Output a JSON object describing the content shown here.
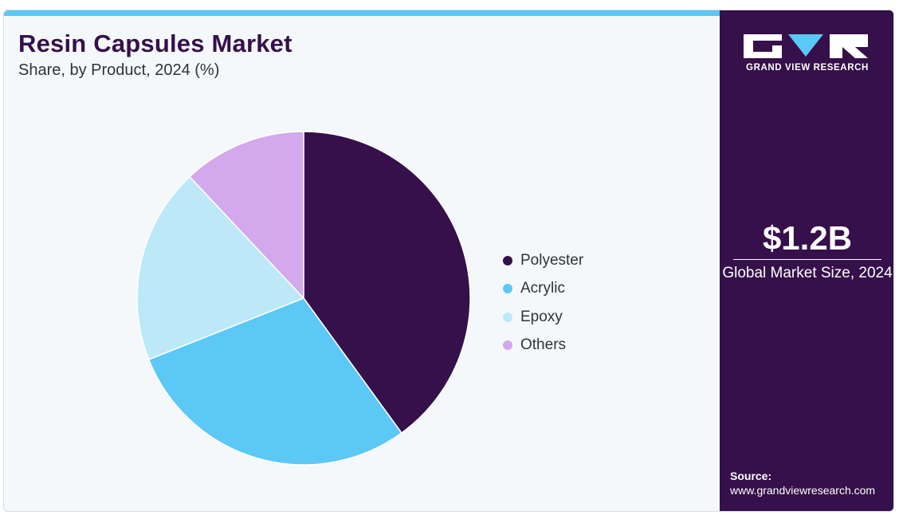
{
  "header": {
    "title": "Resin Capsules Market",
    "subtitle": "Share, by Product, 2024 (%)"
  },
  "chart_data": {
    "type": "pie",
    "categories": [
      "Polyester",
      "Acrylic",
      "Epoxy",
      "Others"
    ],
    "values": [
      40,
      29,
      19,
      12
    ],
    "colors": [
      "#35104a",
      "#5bc8f5",
      "#bde8f8",
      "#d4a8ec"
    ],
    "legend_position": "right",
    "start": "top",
    "direction": "clockwise"
  },
  "sidebar": {
    "brand": "GRAND VIEW RESEARCH",
    "market_size_value": "$1.2B",
    "market_size_label": "Global Market Size, 2024",
    "source_label": "Source:",
    "source_url": "www.grandviewresearch.com"
  },
  "colors": {
    "accent_bar": "#5bc8f5",
    "sidebar_bg": "#35104a",
    "card_bg": "#f4f8fb",
    "logo_triangle": "#5bc8f5"
  }
}
